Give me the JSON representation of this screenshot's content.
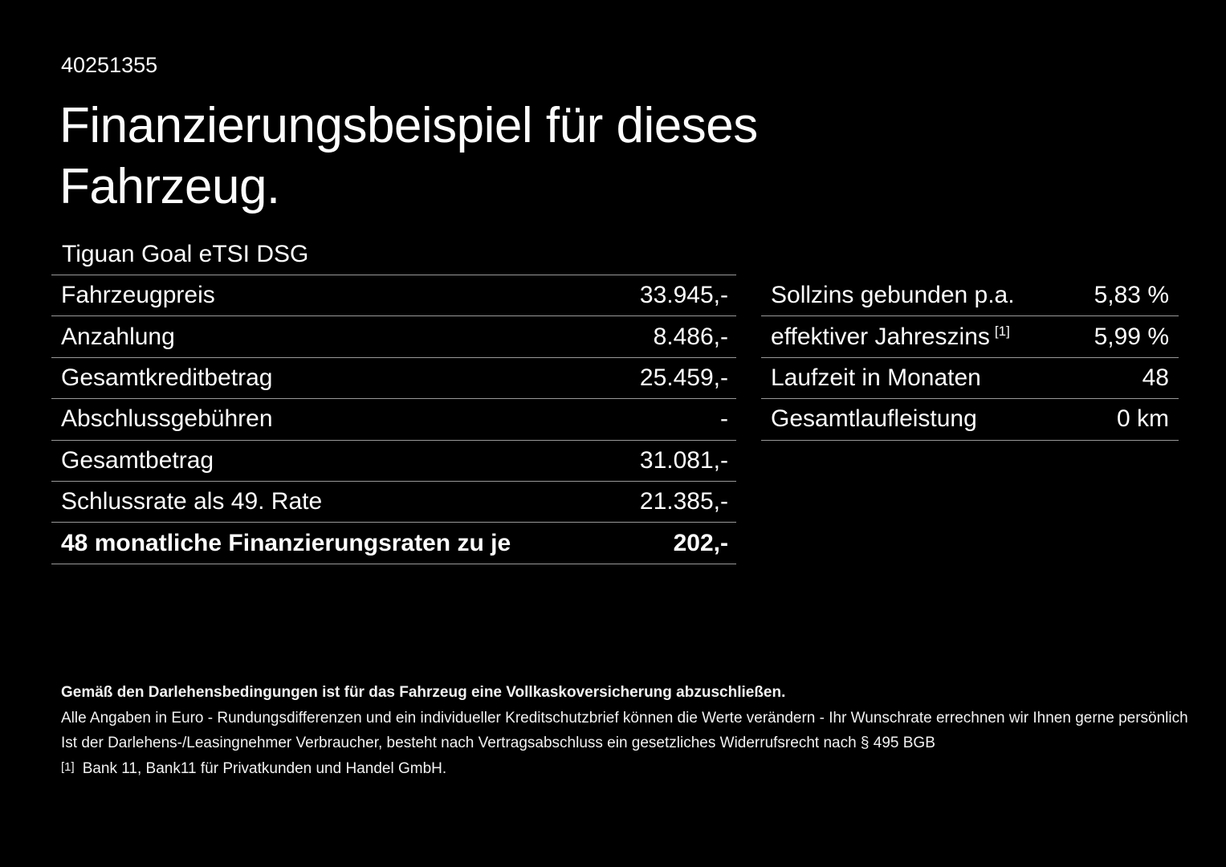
{
  "header": {
    "vehicle_id": "40251355",
    "title_line1": "Finanzierungsbeispiel für dieses",
    "title_line2": "Fahrzeug.",
    "model_name": "Tiguan Goal eTSI DSG"
  },
  "financing_table": {
    "rows": [
      {
        "label": "Fahrzeugpreis",
        "value": "33.945,-"
      },
      {
        "label": "Anzahlung",
        "value": "8.486,-"
      },
      {
        "label": "Gesamtkreditbetrag",
        "value": "25.459,-"
      },
      {
        "label": "Abschlussgebühren",
        "value": "-"
      },
      {
        "label": "Gesamtbetrag",
        "value": "31.081,-"
      },
      {
        "label": "Schlussrate als 49. Rate",
        "value": "21.385,-"
      },
      {
        "label": "48 monatliche Finanzierungsraten zu je",
        "value": "202,-"
      }
    ]
  },
  "conditions_table": {
    "rows": [
      {
        "label": "Sollzins gebunden p.a.",
        "value": "5,83 %"
      },
      {
        "label": "effektiver Jahreszins",
        "footnote_marker": "[1]",
        "value": "5,99 %"
      },
      {
        "label": "Laufzeit in Monaten",
        "value": "48"
      },
      {
        "label": "Gesamtlaufleistung",
        "value": "0 km"
      }
    ]
  },
  "footer": {
    "insurance_note": "Gemäß den Darlehensbedingungen ist für das Fahrzeug eine Vollkaskoversicherung abzuschließen.",
    "disclaimer_line1": "Alle Angaben in Euro - Rundungsdifferenzen und ein individueller Kreditschutzbrief können die Werte verändern - Ihr Wunschrate errechnen wir Ihnen gerne persönlich",
    "disclaimer_line2": "Ist der Darlehens-/Leasingnehmer Verbraucher, besteht nach Vertragsabschluss ein gesetzliches Widerrufsrecht nach § 495 BGB",
    "footnote_marker": "[1]",
    "footnote_text": "Bank 11, Bank11 für Privatkunden und Handel GmbH."
  },
  "colors": {
    "background": "#000000",
    "text": "#fdfdfd",
    "divider": "#999999"
  }
}
